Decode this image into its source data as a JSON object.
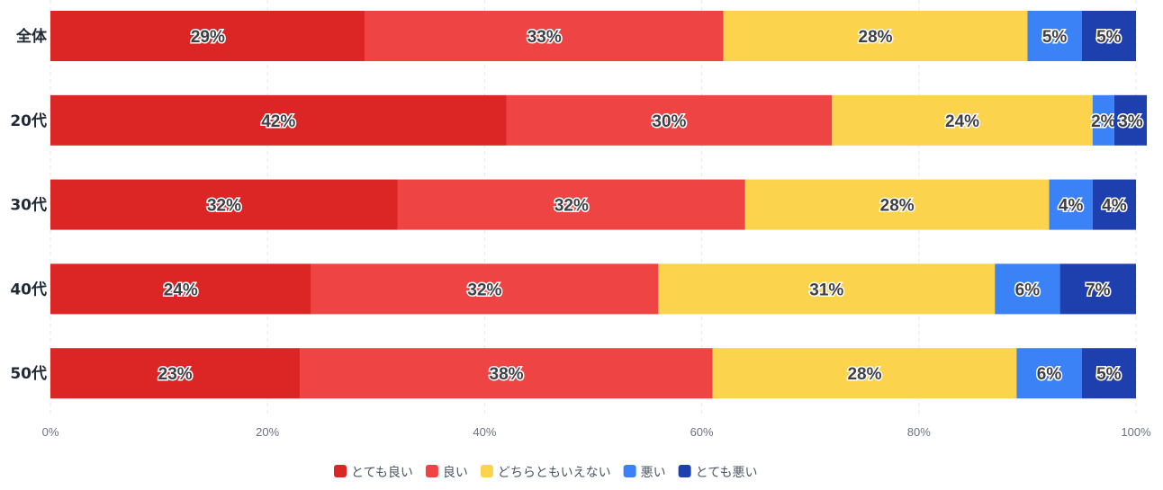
{
  "chart_data": {
    "type": "bar",
    "orientation": "horizontal",
    "stacked": true,
    "categories": [
      "全体",
      "20代",
      "30代",
      "40代",
      "50代"
    ],
    "series": [
      {
        "name": "とても良い",
        "color": "#dc2626",
        "values": [
          29,
          42,
          32,
          24,
          23
        ]
      },
      {
        "name": "良い",
        "color": "#ef4444",
        "values": [
          33,
          30,
          32,
          32,
          38
        ]
      },
      {
        "name": "どちらともいえない",
        "color": "#fcd34d",
        "values": [
          28,
          24,
          28,
          31,
          28
        ]
      },
      {
        "name": "悪い",
        "color": "#3b82f6",
        "values": [
          5,
          2,
          4,
          6,
          6
        ]
      },
      {
        "name": "とても悪い",
        "color": "#1e40af",
        "values": [
          5,
          3,
          4,
          7,
          5
        ]
      }
    ],
    "xlim": [
      0,
      100
    ],
    "xticks": [
      "0%",
      "20%",
      "40%",
      "60%",
      "80%",
      "100%"
    ],
    "grid": true,
    "legend": "bottom"
  }
}
